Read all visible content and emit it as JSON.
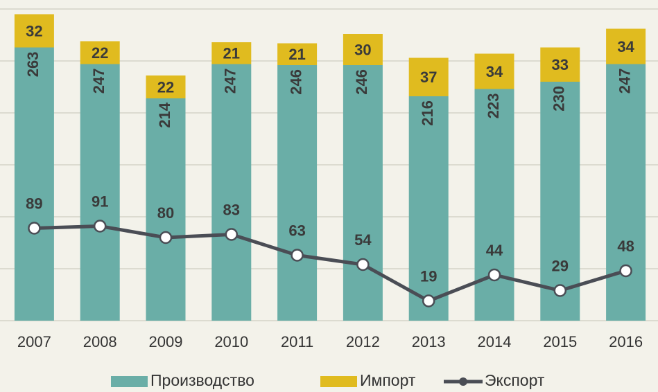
{
  "chart_data": {
    "type": "bar_line",
    "categories": [
      "2007",
      "2008",
      "2009",
      "2010",
      "2011",
      "2012",
      "2013",
      "2014",
      "2015",
      "2016"
    ],
    "series": [
      {
        "name": "Производство",
        "color": "#6aaea7",
        "values": [
          263,
          247,
          214,
          247,
          246,
          246,
          216,
          223,
          230,
          247
        ]
      },
      {
        "name": "Импорт",
        "color": "#e0bb1f",
        "values": [
          32,
          22,
          22,
          21,
          21,
          30,
          37,
          34,
          33,
          34
        ]
      },
      {
        "name": "Экспорт",
        "color": "#4a4d55",
        "values": [
          89,
          91,
          80,
          83,
          63,
          54,
          19,
          44,
          29,
          48
        ]
      }
    ],
    "ylim": [
      0,
      300
    ],
    "yticks": [
      0,
      50,
      100,
      150,
      200,
      250,
      300
    ],
    "grid": true
  }
}
